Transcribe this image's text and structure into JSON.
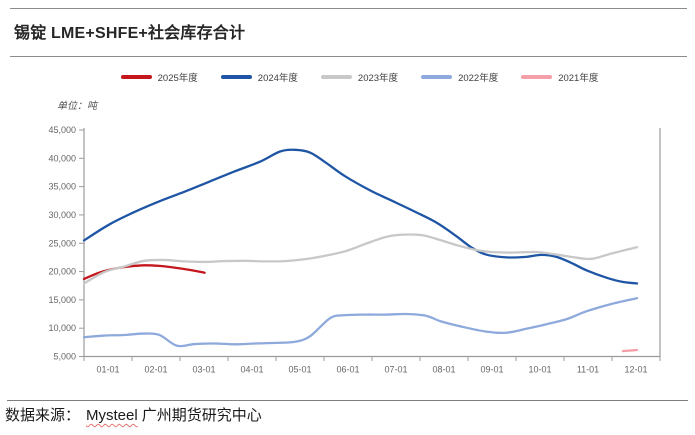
{
  "page": {
    "title": "锡锭 LME+SHFE+社会库存合计",
    "source_prefix": "数据来源：",
    "source_name": "Mysteel",
    "source_suffix": "广州期货研究中心"
  },
  "chart_data": {
    "type": "line",
    "title": "锡锭 LME+SHFE+社会库存合计",
    "unit_label": "单位：吨",
    "legend_position": "top",
    "grid": false,
    "ylim": [
      5000,
      45000
    ],
    "y_tick_step": 5000,
    "y_tick_labels": [
      "5,000",
      "10,000",
      "15,000",
      "20,000",
      "25,000",
      "30,000",
      "35,000",
      "40,000",
      "45,000"
    ],
    "x_labels": [
      "01-01",
      "02-01",
      "03-01",
      "04-01",
      "05-01",
      "06-01",
      "07-01",
      "08-01",
      "09-01",
      "10-01",
      "11-01",
      "12-01"
    ],
    "axis_color": "#9b9b9b",
    "tick_label_color": "#666666",
    "series": [
      {
        "name": "2025年度",
        "color": "#c5161d",
        "points": [
          [
            0,
            18700
          ],
          [
            0.3,
            19800
          ],
          [
            0.6,
            20500
          ],
          [
            0.9,
            20900
          ],
          [
            1.2,
            21100
          ],
          [
            1.5,
            21000
          ],
          [
            1.8,
            20700
          ],
          [
            2.1,
            20300
          ],
          [
            2.4,
            19800
          ]
        ]
      },
      {
        "name": "2024年度",
        "color": "#1f55a5",
        "points": [
          [
            0,
            25500
          ],
          [
            0.5,
            28300
          ],
          [
            1,
            30500
          ],
          [
            1.5,
            32400
          ],
          [
            2,
            34100
          ],
          [
            2.5,
            35900
          ],
          [
            3,
            37700
          ],
          [
            3.5,
            39400
          ],
          [
            3.9,
            41200
          ],
          [
            4.2,
            41500
          ],
          [
            4.5,
            41000
          ],
          [
            4.8,
            39300
          ],
          [
            5.2,
            36800
          ],
          [
            5.7,
            34300
          ],
          [
            6.2,
            32200
          ],
          [
            6.6,
            30500
          ],
          [
            7,
            28700
          ],
          [
            7.4,
            26300
          ],
          [
            7.7,
            24300
          ],
          [
            8,
            23000
          ],
          [
            8.4,
            22500
          ],
          [
            8.8,
            22600
          ],
          [
            9.1,
            22950
          ],
          [
            9.4,
            22600
          ],
          [
            9.7,
            21500
          ],
          [
            10,
            20200
          ],
          [
            10.4,
            18900
          ],
          [
            10.7,
            18200
          ],
          [
            11,
            17900
          ]
        ]
      },
      {
        "name": "2023年度",
        "color": "#c8c8c8",
        "points": [
          [
            0,
            17900
          ],
          [
            0.4,
            19900
          ],
          [
            0.8,
            20900
          ],
          [
            1.2,
            21900
          ],
          [
            1.6,
            22050
          ],
          [
            2,
            21800
          ],
          [
            2.4,
            21700
          ],
          [
            2.8,
            21850
          ],
          [
            3.2,
            21900
          ],
          [
            3.6,
            21800
          ],
          [
            4,
            21850
          ],
          [
            4.4,
            22200
          ],
          [
            4.8,
            22800
          ],
          [
            5.2,
            23600
          ],
          [
            5.6,
            24900
          ],
          [
            6,
            26100
          ],
          [
            6.3,
            26500
          ],
          [
            6.7,
            26450
          ],
          [
            7,
            25800
          ],
          [
            7.4,
            24700
          ],
          [
            7.8,
            23800
          ],
          [
            8.1,
            23450
          ],
          [
            8.5,
            23350
          ],
          [
            9,
            23450
          ],
          [
            9.4,
            23000
          ],
          [
            9.8,
            22450
          ],
          [
            10.1,
            22250
          ],
          [
            10.5,
            23200
          ],
          [
            11,
            24300
          ]
        ]
      },
      {
        "name": "2022年度",
        "color": "#8ea9db",
        "points": [
          [
            0,
            8400
          ],
          [
            0.4,
            8700
          ],
          [
            0.8,
            8800
          ],
          [
            1.2,
            9050
          ],
          [
            1.5,
            8800
          ],
          [
            1.85,
            6900
          ],
          [
            2.2,
            7200
          ],
          [
            2.6,
            7300
          ],
          [
            3,
            7150
          ],
          [
            3.4,
            7300
          ],
          [
            3.8,
            7400
          ],
          [
            4.2,
            7600
          ],
          [
            4.5,
            8600
          ],
          [
            4.9,
            11800
          ],
          [
            5.2,
            12300
          ],
          [
            5.6,
            12400
          ],
          [
            6,
            12400
          ],
          [
            6.4,
            12500
          ],
          [
            6.8,
            12200
          ],
          [
            7.1,
            11200
          ],
          [
            7.5,
            10300
          ],
          [
            8,
            9400
          ],
          [
            8.4,
            9200
          ],
          [
            8.8,
            9900
          ],
          [
            9.2,
            10700
          ],
          [
            9.6,
            11600
          ],
          [
            10,
            13000
          ],
          [
            10.5,
            14300
          ],
          [
            11,
            15300
          ]
        ]
      },
      {
        "name": "2021年度",
        "color": "#f4a0aa",
        "points": [
          [
            10.72,
            5950
          ],
          [
            11,
            6150
          ]
        ]
      }
    ]
  }
}
